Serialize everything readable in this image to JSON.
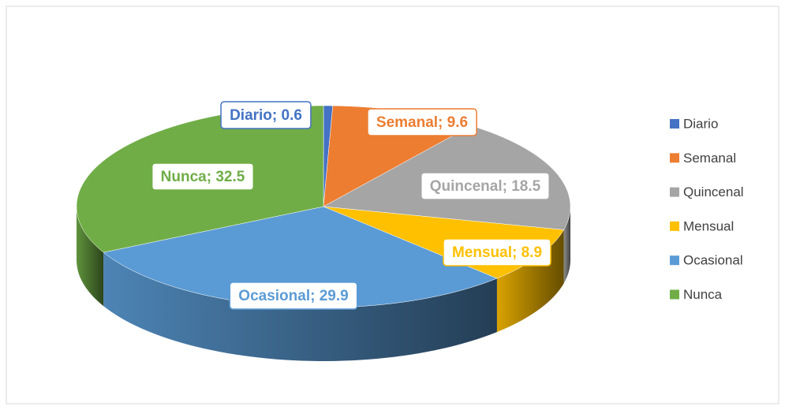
{
  "chart_data": {
    "type": "pie",
    "categories": [
      "Diario",
      "Semanal",
      "Quincenal",
      "Mensual",
      "Ocasional",
      "Nunca"
    ],
    "values": [
      0.6,
      9.6,
      18.5,
      8.9,
      29.9,
      32.5
    ],
    "value_labels": [
      "Diario; 0.6",
      "Semanal; 9.6",
      "Quincenal; 18.5",
      "Mensual; 8.9",
      "Ocasional; 29.9",
      "Nunca; 32.5"
    ],
    "colors": [
      "#4472c4",
      "#ed7d31",
      "#a5a5a5",
      "#ffc000",
      "#5b9bd5",
      "#70ad47"
    ],
    "legend": "right"
  }
}
